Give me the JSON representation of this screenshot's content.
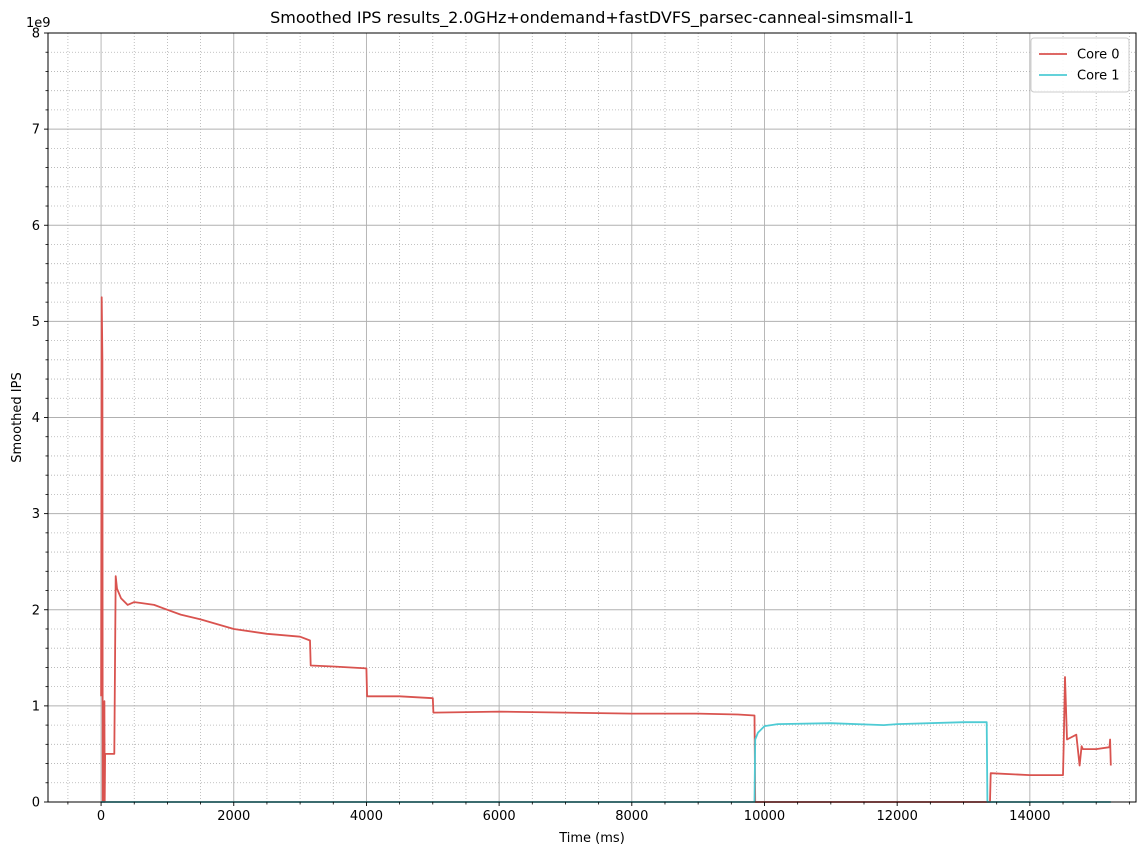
{
  "chart_data": {
    "type": "line",
    "title": "Smoothed IPS results_2.0GHz+ondemand+fastDVFS_parsec-canneal-simsmall-1",
    "xlabel": "Time (ms)",
    "ylabel": "Smoothed IPS",
    "y_offset_label": "1e9",
    "xlim": [
      -800,
      15600
    ],
    "ylim": [
      0,
      8
    ],
    "x_ticks": [
      0,
      2000,
      4000,
      6000,
      8000,
      10000,
      12000,
      14000
    ],
    "x_tick_labels": [
      "0",
      "2000",
      "4000",
      "6000",
      "8000",
      "10000",
      "12000",
      "14000"
    ],
    "y_ticks": [
      0,
      1,
      2,
      3,
      4,
      5,
      6,
      7,
      8
    ],
    "y_tick_labels": [
      "0",
      "1",
      "2",
      "3",
      "4",
      "5",
      "6",
      "7",
      "8"
    ],
    "grid": "major solid, minor dotted",
    "legend_position": "top-right",
    "series": [
      {
        "name": "Core 0",
        "color": "#d9534f",
        "x": [
          0,
          10,
          20,
          25,
          40,
          50,
          55,
          60,
          75,
          100,
          200,
          220,
          240,
          300,
          400,
          500,
          600,
          800,
          1000,
          1200,
          1500,
          2000,
          2500,
          3000,
          3150,
          3160,
          3500,
          4000,
          4010,
          4500,
          5000,
          5010,
          6000,
          7000,
          8000,
          9000,
          9600,
          9850,
          9860,
          13400,
          13410,
          14000,
          14500,
          14510,
          14530,
          14560,
          14700,
          14750,
          14780,
          14800,
          15000,
          15200,
          15210,
          15220
        ],
        "y": [
          1.1,
          5.25,
          4.6,
          0.0,
          0.0,
          1.05,
          0.0,
          0.5,
          0.5,
          0.5,
          0.5,
          2.35,
          2.22,
          2.12,
          2.05,
          2.08,
          2.07,
          2.05,
          2.0,
          1.95,
          1.9,
          1.8,
          1.75,
          1.72,
          1.68,
          1.42,
          1.41,
          1.39,
          1.1,
          1.1,
          1.08,
          0.93,
          0.94,
          0.93,
          0.92,
          0.92,
          0.91,
          0.9,
          0.0,
          0.0,
          0.3,
          0.28,
          0.28,
          0.6,
          1.3,
          0.65,
          0.7,
          0.38,
          0.58,
          0.55,
          0.55,
          0.57,
          0.65,
          0.38
        ]
      },
      {
        "name": "Core 1",
        "color": "#4ecbd4",
        "x": [
          0,
          9850,
          9860,
          9900,
          10000,
          10200,
          11000,
          11800,
          12000,
          13000,
          13350,
          13360,
          15220
        ],
        "y": [
          0.0,
          0.0,
          0.65,
          0.72,
          0.79,
          0.81,
          0.82,
          0.8,
          0.81,
          0.83,
          0.83,
          0.0,
          0.0
        ]
      }
    ]
  }
}
